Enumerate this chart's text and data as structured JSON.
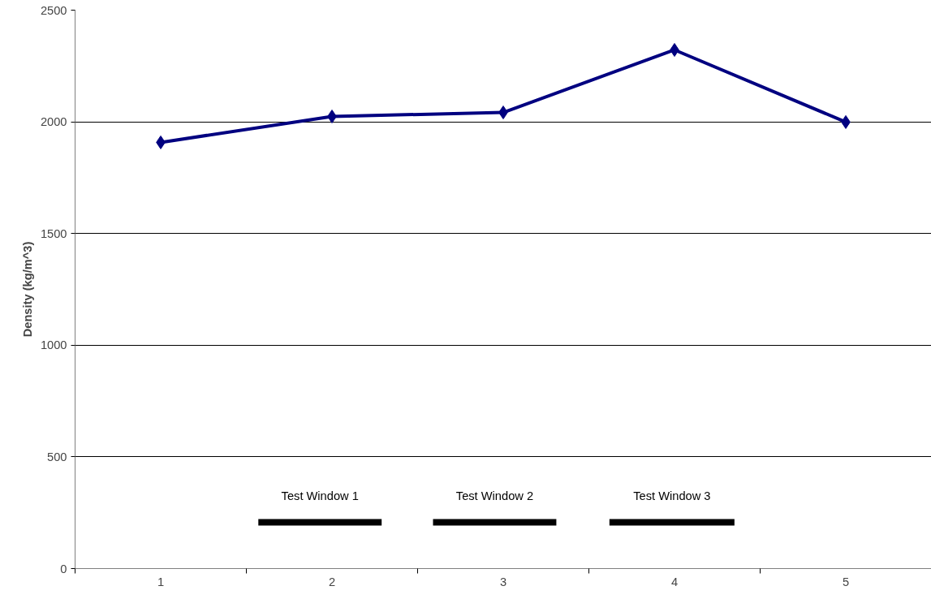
{
  "chart_data": {
    "type": "line",
    "ylabel": "Density (kg/m^3)",
    "x": [
      1,
      2,
      3,
      4,
      5
    ],
    "series": [
      {
        "color": "#000080",
        "values": [
          1908,
          2024,
          2042,
          2322,
          1999
        ],
        "marker": "diamond"
      },
      {
        "name": "Test Window 1",
        "color": "#000000",
        "x": [
          1.57,
          2.29
        ],
        "values": [
          207,
          207
        ],
        "marker": "none"
      },
      {
        "name": "Test Window 2",
        "color": "#000000",
        "x": [
          2.59,
          3.31
        ],
        "values": [
          207,
          207
        ],
        "marker": "none"
      },
      {
        "name": "Test Window 3",
        "color": "#000000",
        "x": [
          3.62,
          4.35
        ],
        "values": [
          207,
          207
        ],
        "marker": "none"
      }
    ],
    "xlim": [
      0.5,
      5.5
    ],
    "xticks": [
      {
        "value": 0.5,
        "label": null
      },
      1,
      {
        "value": 1.5,
        "label": null
      },
      2,
      {
        "value": 2.5,
        "label": null
      },
      3,
      {
        "value": 3.5,
        "label": null
      },
      4,
      {
        "value": 4.5,
        "label": null
      },
      5,
      {
        "value": 5.5,
        "label": null
      }
    ],
    "ylim": [
      0,
      2500
    ],
    "yticks": [
      0,
      500,
      1000,
      1500,
      2000,
      2500
    ],
    "grid": "y",
    "line_style": "solid"
  }
}
